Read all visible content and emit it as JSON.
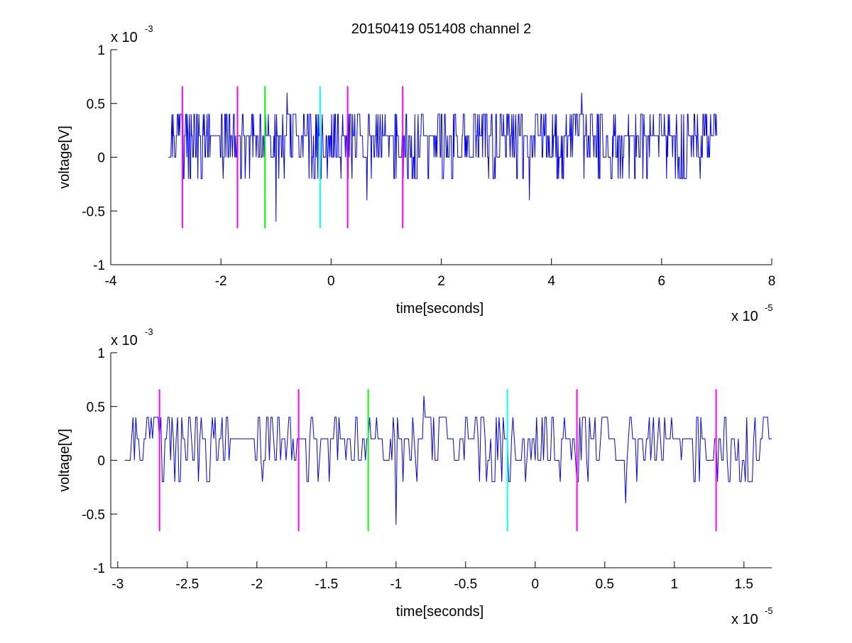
{
  "chart_data": [
    {
      "type": "line",
      "title": "20150419 051408 channel 2",
      "xlabel": "time[seconds]",
      "ylabel": "voltage[V]",
      "x_exponent_label": "x 10",
      "x_exponent_power": "-5",
      "y_exponent_label": "x 10",
      "y_exponent_power": "-3",
      "xlim": [
        -4,
        8
      ],
      "ylim": [
        -1,
        1
      ],
      "xticks": [
        "-4",
        "-2",
        "0",
        "2",
        "4",
        "6",
        "8"
      ],
      "yticks": [
        "1",
        "0.5",
        "0",
        "-0.5",
        "-1"
      ],
      "grid": false,
      "signal": {
        "color": "#0000ff",
        "x_range": [
          -2.95,
          7.0
        ],
        "levels_mV": [
          -0.6,
          -0.4,
          -0.2,
          0,
          0.2,
          0.4,
          0.6
        ],
        "baseline_mV": 0.2,
        "notable_spikes": [
          {
            "x": -0.8,
            "y": 0.6
          },
          {
            "x": -1.0,
            "y": -0.6
          },
          {
            "x": 0.65,
            "y": -0.4
          },
          {
            "x": 3.6,
            "y": -0.4
          },
          {
            "x": 4.55,
            "y": 0.6
          }
        ]
      },
      "markers": [
        {
          "x": -2.7,
          "color": "#ff00ff",
          "y0": -0.66,
          "y1": 0.66
        },
        {
          "x": -1.7,
          "color": "#ff00ff",
          "y0": -0.66,
          "y1": 0.66
        },
        {
          "x": -1.2,
          "color": "#00ff00",
          "y0": -0.66,
          "y1": 0.66
        },
        {
          "x": -0.2,
          "color": "#00ffff",
          "y0": -0.66,
          "y1": 0.66
        },
        {
          "x": 0.3,
          "color": "#ff00ff",
          "y0": -0.66,
          "y1": 0.66
        },
        {
          "x": 1.3,
          "color": "#ff00ff",
          "y0": -0.66,
          "y1": 0.66
        }
      ]
    },
    {
      "type": "line",
      "title": "",
      "xlabel": "time[seconds]",
      "ylabel": "voltage[V]",
      "x_exponent_label": "x 10",
      "x_exponent_power": "-5",
      "y_exponent_label": "x 10",
      "y_exponent_power": "-3",
      "xlim": [
        -3.05,
        1.7
      ],
      "ylim": [
        -1,
        1
      ],
      "xticks": [
        "-3",
        "-2.5",
        "-2",
        "-1.5",
        "-1",
        "-0.5",
        "0",
        "0.5",
        "1",
        "1.5"
      ],
      "yticks": [
        "1",
        "0.5",
        "0",
        "-0.5",
        "-1"
      ],
      "grid": false,
      "signal": {
        "color": "#0000ff",
        "x_range": [
          -2.95,
          1.7
        ],
        "levels_mV": [
          -0.6,
          -0.4,
          -0.2,
          0,
          0.2,
          0.4,
          0.6
        ],
        "baseline_mV": 0.2,
        "notable_spikes": [
          {
            "x": -0.8,
            "y": 0.6
          },
          {
            "x": -1.0,
            "y": -0.6
          },
          {
            "x": 0.65,
            "y": -0.4
          }
        ]
      },
      "markers": [
        {
          "x": -2.7,
          "color": "#ff00ff",
          "y0": -0.66,
          "y1": 0.66
        },
        {
          "x": -1.7,
          "color": "#ff00ff",
          "y0": -0.66,
          "y1": 0.66
        },
        {
          "x": -1.2,
          "color": "#00ff00",
          "y0": -0.66,
          "y1": 0.66
        },
        {
          "x": -0.2,
          "color": "#00ffff",
          "y0": -0.66,
          "y1": 0.66
        },
        {
          "x": 0.3,
          "color": "#ff00ff",
          "y0": -0.66,
          "y1": 0.66
        },
        {
          "x": 1.3,
          "color": "#ff00ff",
          "y0": -0.66,
          "y1": 0.66
        }
      ]
    }
  ]
}
